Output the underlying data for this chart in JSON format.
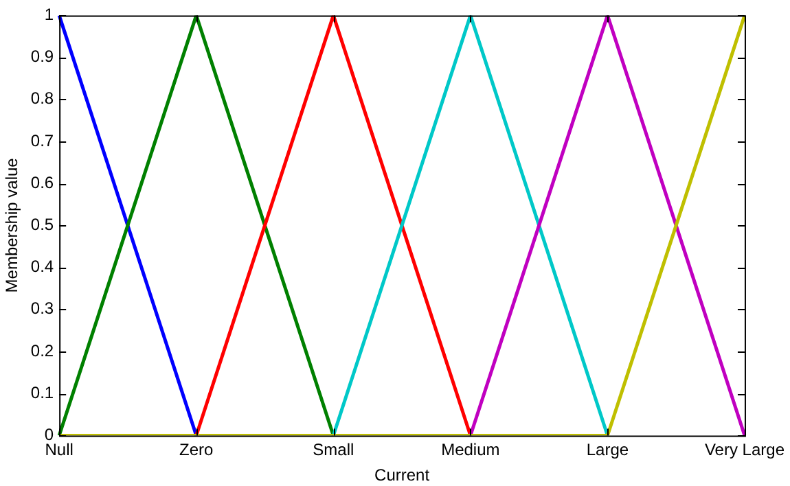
{
  "chart_data": {
    "type": "line",
    "xlabel": "Current",
    "ylabel": "Membership value",
    "categories": [
      "Null",
      "Zero",
      "Small",
      "Medium",
      "Large",
      "Very Large"
    ],
    "ylim": [
      0,
      1
    ],
    "yticks": [
      0,
      0.1,
      0.2,
      0.3,
      0.4,
      0.5,
      0.6,
      0.7,
      0.8,
      0.9,
      1
    ],
    "grid": false,
    "legend": false,
    "marker": "none",
    "line_style": "solid",
    "series": [
      {
        "color": "#0000ff",
        "values": [
          1,
          0,
          null,
          null,
          null,
          null
        ]
      },
      {
        "color": "#008000",
        "values": [
          0,
          1,
          0,
          null,
          null,
          null
        ]
      },
      {
        "color": "#ff0000",
        "values": [
          null,
          0,
          1,
          0,
          null,
          null
        ]
      },
      {
        "color": "#00c8c8",
        "values": [
          null,
          null,
          0,
          1,
          0,
          null
        ]
      },
      {
        "color": "#c000c0",
        "values": [
          null,
          null,
          null,
          0,
          1,
          0
        ]
      },
      {
        "color": "#bfbf00",
        "values": [
          0,
          0,
          0,
          0,
          0,
          1
        ]
      }
    ]
  }
}
